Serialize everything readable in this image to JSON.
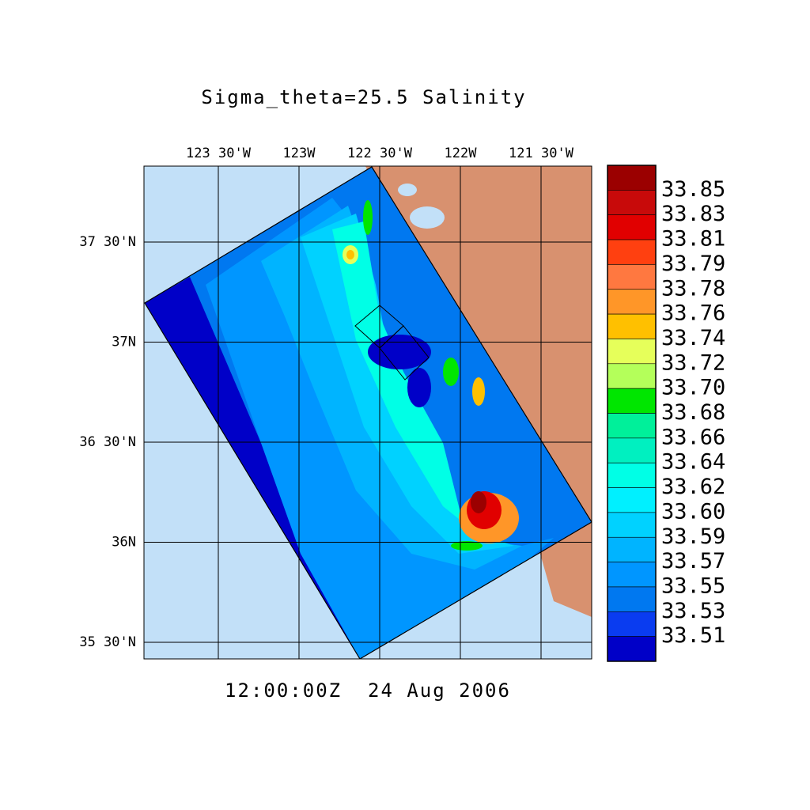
{
  "title": "Sigma_theta=25.5 Salinity",
  "lon_labels": [
    "123 30'W",
    "123W",
    "122 30'W",
    "122W",
    "121 30'W"
  ],
  "lat_labels": [
    "37 30'N",
    "37N",
    "36 30'N",
    "36N",
    "35 30'N"
  ],
  "colorbar": {
    "labels": [
      "33.85",
      "33.83",
      "33.81",
      "33.79",
      "33.78",
      "33.76",
      "33.74",
      "33.72",
      "33.70",
      "33.68",
      "33.66",
      "33.64",
      "33.62",
      "33.60",
      "33.59",
      "33.57",
      "33.55",
      "33.53",
      "33.51"
    ],
    "colors": [
      "#9b0000",
      "#c80a0a",
      "#e10000",
      "#ff4010",
      "#ff7840",
      "#ff9628",
      "#ffc000",
      "#e6ff5a",
      "#b4ff5a",
      "#00e600",
      "#00f09a",
      "#00f0c0",
      "#00ffe6",
      "#00f0ff",
      "#00d2ff",
      "#00b4ff",
      "#0096ff",
      "#0078f0",
      "#0a3cf0",
      "#0000c8"
    ]
  },
  "time": "12:00:00Z  24 Aug 2006"
}
